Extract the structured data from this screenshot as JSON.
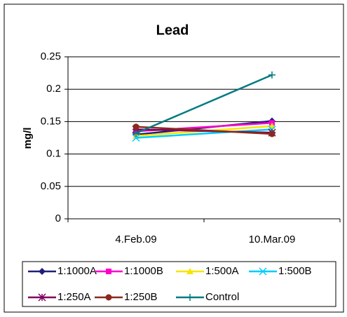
{
  "chart_data": {
    "type": "line",
    "title": "Lead",
    "y_label": "mg/l",
    "categories": [
      "4.Feb.09",
      "10.Mar.09"
    ],
    "series": [
      {
        "name": "1:1000A",
        "color": "#1f1f7a",
        "marker": "diamond",
        "values": [
          0.13,
          0.151
        ]
      },
      {
        "name": "1:1000B",
        "color": "#ff00cc",
        "marker": "square",
        "values": [
          0.135,
          0.148
        ]
      },
      {
        "name": "1:500A",
        "color": "#f5e600",
        "marker": "triangle",
        "values": [
          0.128,
          0.143
        ]
      },
      {
        "name": "1:500B",
        "color": "#00ccff",
        "marker": "x",
        "values": [
          0.125,
          0.138
        ]
      },
      {
        "name": "1:250A",
        "color": "#800060",
        "marker": "star",
        "values": [
          0.138,
          0.133
        ]
      },
      {
        "name": "1:250B",
        "color": "#8b2a1a",
        "marker": "circle",
        "values": [
          0.142,
          0.131
        ]
      },
      {
        "name": "Control",
        "color": "#007a80",
        "marker": "plus",
        "values": [
          0.132,
          0.222
        ]
      }
    ],
    "ylim": [
      0,
      0.25
    ],
    "yticks": [
      0,
      0.05,
      0.1,
      0.15,
      0.2,
      0.25
    ],
    "grid": true
  }
}
